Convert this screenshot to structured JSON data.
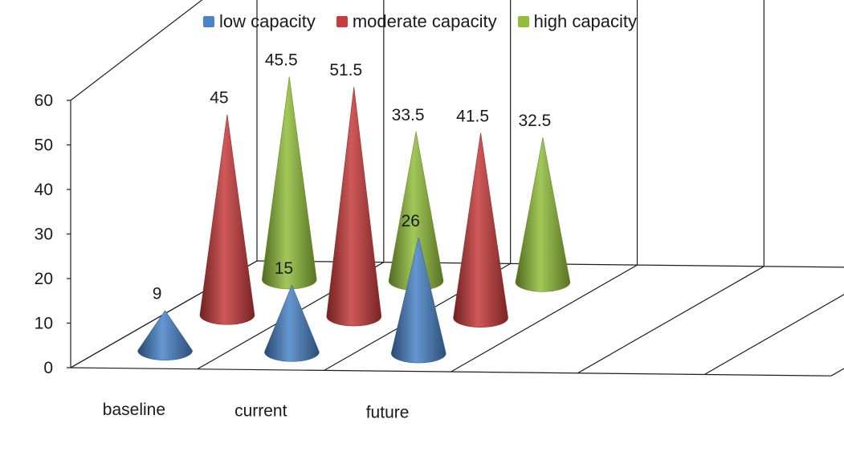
{
  "chart_data": {
    "type": "bar",
    "shape": "cone",
    "categories": [
      "baseline",
      "current",
      "future"
    ],
    "series": [
      {
        "name": "low capacity",
        "color": "#4a84c8",
        "values": [
          9,
          15,
          26
        ]
      },
      {
        "name": "moderate capacity",
        "color": "#c83c3c",
        "values": [
          45,
          51.5,
          41.5
        ]
      },
      {
        "name": "high capacity",
        "color": "#92be3c",
        "values": [
          45.5,
          33.5,
          32.5
        ]
      }
    ],
    "data_labels": [
      [
        "9",
        "15",
        "26"
      ],
      [
        "45",
        "51.5",
        "41.5"
      ],
      [
        "45.5",
        "33.5",
        "32.5"
      ]
    ],
    "y_ticks": [
      "0",
      "10",
      "20",
      "30",
      "40",
      "50",
      "60"
    ],
    "ylim": [
      0,
      60
    ],
    "legend_position": "top",
    "grid": true,
    "title": "",
    "xlabel": "",
    "ylabel": ""
  }
}
